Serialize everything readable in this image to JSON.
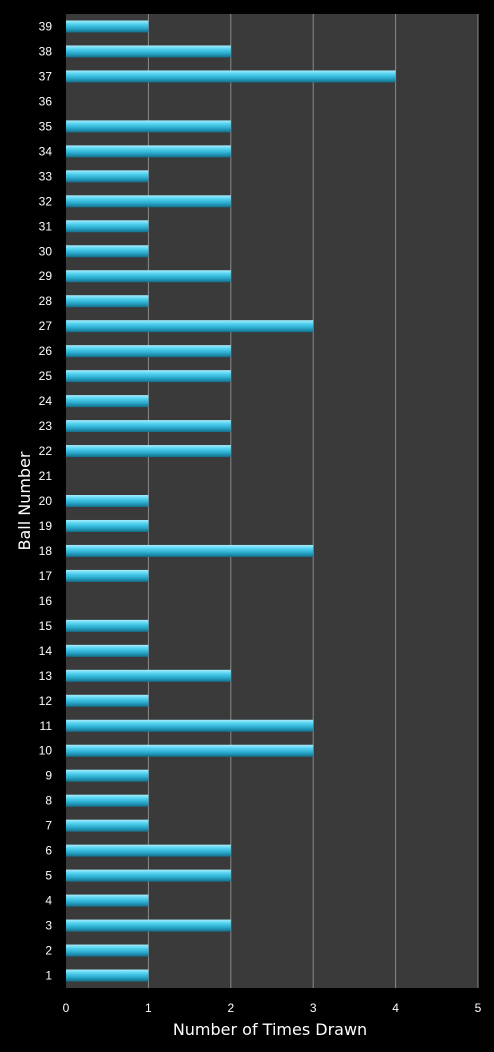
{
  "chart_data": {
    "type": "bar",
    "orientation": "horizontal",
    "title": "",
    "xlabel": "Number of Times Drawn",
    "ylabel": "Ball Number",
    "xlim": [
      0,
      5
    ],
    "xticks": [
      0,
      1,
      2,
      3,
      4,
      5
    ],
    "grid": true,
    "legend": "none",
    "categories": [
      "1",
      "2",
      "3",
      "4",
      "5",
      "6",
      "7",
      "8",
      "9",
      "10",
      "11",
      "12",
      "13",
      "14",
      "15",
      "16",
      "17",
      "18",
      "19",
      "20",
      "21",
      "22",
      "23",
      "24",
      "25",
      "26",
      "27",
      "28",
      "29",
      "30",
      "31",
      "32",
      "33",
      "34",
      "35",
      "36",
      "37",
      "38",
      "39"
    ],
    "values": [
      1,
      1,
      2,
      1,
      2,
      2,
      1,
      1,
      1,
      3,
      3,
      1,
      2,
      1,
      1,
      0,
      1,
      3,
      1,
      1,
      0,
      2,
      2,
      1,
      2,
      2,
      3,
      1,
      2,
      1,
      1,
      2,
      1,
      2,
      2,
      0,
      4,
      2,
      1
    ],
    "colors": {
      "background": "#000000",
      "plot_area": "#3a3a3a",
      "gridline": "#8a8a8a",
      "bar": "#3fc6e8",
      "text": "#ffffff"
    }
  }
}
